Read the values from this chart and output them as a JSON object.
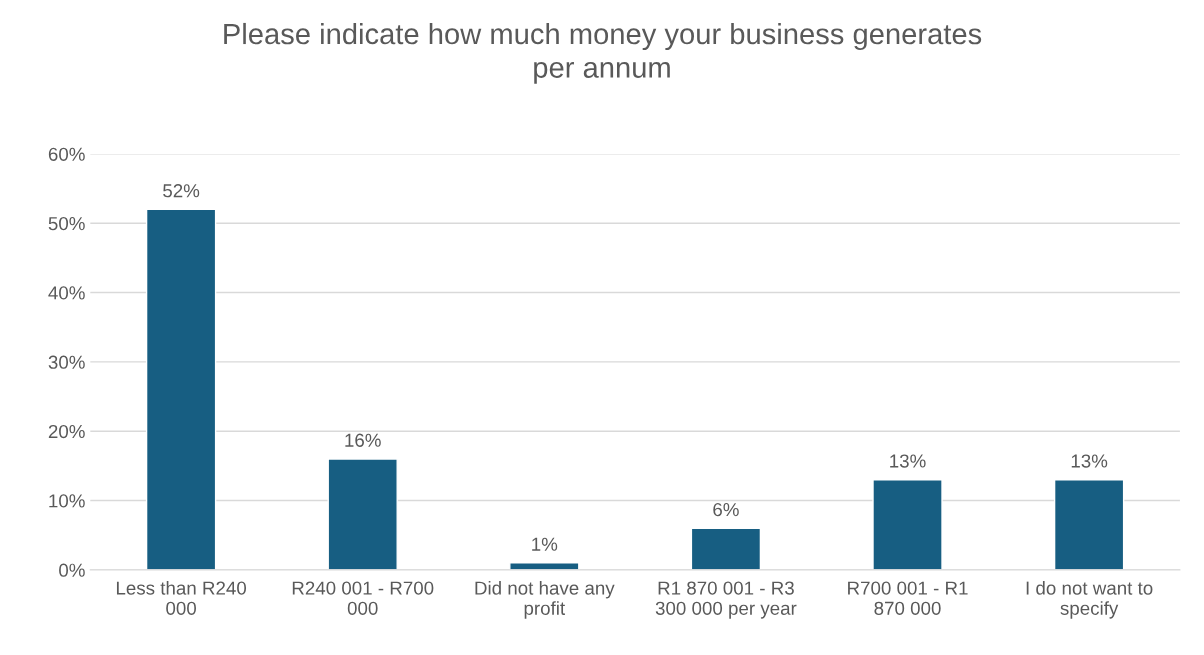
{
  "chart_data": {
    "type": "bar",
    "title": "Please indicate how much money your business generates\nper annum",
    "categories": [
      "Less than R240\n000",
      "R240 001 - R700\n000",
      "Did not have any\nprofit",
      "R1 870 001 - R3\n300 000 per year",
      "R700 001 - R1\n870 000",
      "I do not want to\nspecify"
    ],
    "values": [
      52,
      16,
      1,
      6,
      13,
      13
    ],
    "value_labels": [
      "52%",
      "16%",
      "1%",
      "6%",
      "13%",
      "13%"
    ],
    "color": "#175e82",
    "ylim": [
      0,
      60
    ],
    "yticks": [
      {
        "value": 0,
        "label": "0%"
      },
      {
        "value": 10,
        "label": "10%"
      },
      {
        "value": 20,
        "label": "20%"
      },
      {
        "value": 30,
        "label": "30%"
      },
      {
        "value": 40,
        "label": "40%"
      },
      {
        "value": 50,
        "label": "50%"
      },
      {
        "value": 60,
        "label": "60%"
      }
    ],
    "grid": "y"
  }
}
